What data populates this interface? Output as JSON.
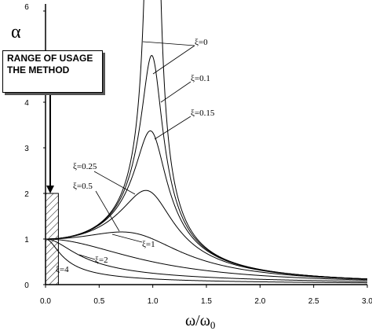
{
  "chart_data": {
    "type": "line",
    "xlabel": "ω/ω0",
    "ylabel": "α",
    "xlim": [
      0,
      3
    ],
    "ylim": [
      0,
      6
    ],
    "x_ticks": [
      "0.0",
      "0.5",
      "1.0",
      "1.5",
      "2.0",
      "2.5",
      "3.0"
    ],
    "y_ticks": [
      "0",
      "1",
      "2",
      "3",
      "4",
      "5",
      "6"
    ],
    "grid": false,
    "legend": "none",
    "annotation": "RANGE OF USAGE THE METHOD",
    "shaded_region_x": [
      0,
      0.12
    ],
    "series": [
      {
        "name": "ξ=0",
        "zeta": 0
      },
      {
        "name": "ξ=0.1",
        "zeta": 0.1
      },
      {
        "name": "ξ=0.15",
        "zeta": 0.15
      },
      {
        "name": "ξ=0.25",
        "zeta": 0.25
      },
      {
        "name": "ξ=0.5",
        "zeta": 0.5
      },
      {
        "name": "ξ=1",
        "zeta": 1
      },
      {
        "name": "ξ=2",
        "zeta": 2
      },
      {
        "name": "ξ=4",
        "zeta": 4
      }
    ]
  }
}
